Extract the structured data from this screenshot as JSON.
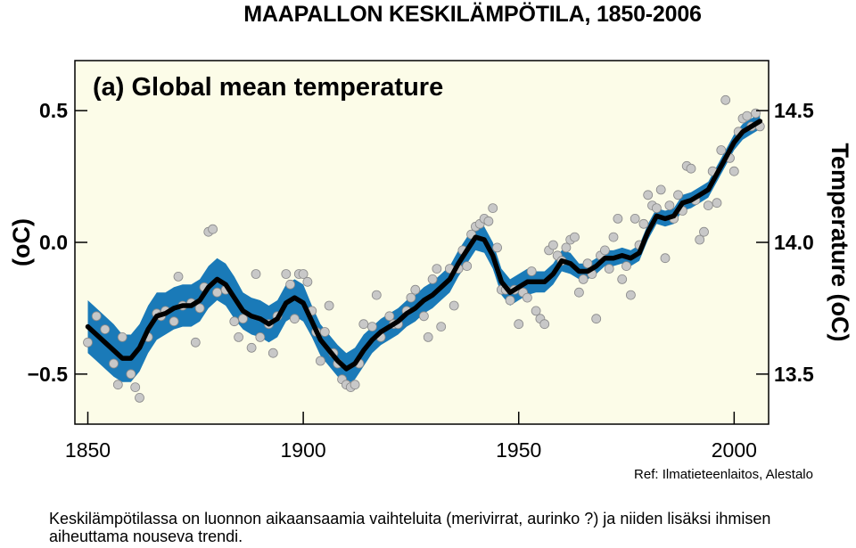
{
  "header": {
    "title": "MAAPALLON KESKILÄMPÖTILA, 1850-2006"
  },
  "chart_data": {
    "type": "line",
    "title": "(a) Global mean temperature",
    "ylabel_left": "(oC)",
    "ylabel_right": "Temperature (oC)",
    "xlim": [
      1847,
      2008
    ],
    "ylim": [
      -0.69,
      0.69
    ],
    "ylim_right": [
      13.31,
      14.69
    ],
    "x_ticks": [
      1850,
      1900,
      1950,
      2000
    ],
    "y_ticks_left": [
      {
        "value": -0.5,
        "label": "−0.5"
      },
      {
        "value": 0.0,
        "label": "0.0"
      },
      {
        "value": 0.5,
        "label": "0.5"
      }
    ],
    "y_ticks_right": [
      {
        "value": -0.5,
        "label": "13.5"
      },
      {
        "value": 0.0,
        "label": "14.0"
      },
      {
        "value": 0.5,
        "label": "14.5"
      }
    ],
    "colors": {
      "band": "#1a7ab8",
      "smooth": "#000000",
      "points": "#c8c8c8",
      "plot_bg": "#fcfce8"
    },
    "series": [
      {
        "name": "smoothed",
        "x": [
          1850,
          1852,
          1854,
          1856,
          1858,
          1860,
          1862,
          1864,
          1866,
          1868,
          1870,
          1872,
          1874,
          1876,
          1878,
          1880,
          1882,
          1884,
          1886,
          1888,
          1890,
          1892,
          1894,
          1896,
          1898,
          1900,
          1902,
          1904,
          1906,
          1908,
          1910,
          1912,
          1914,
          1916,
          1918,
          1920,
          1922,
          1924,
          1926,
          1928,
          1930,
          1932,
          1934,
          1936,
          1938,
          1940,
          1942,
          1944,
          1946,
          1948,
          1950,
          1952,
          1954,
          1956,
          1958,
          1960,
          1962,
          1964,
          1966,
          1968,
          1970,
          1972,
          1974,
          1976,
          1978,
          1980,
          1982,
          1984,
          1986,
          1988,
          1990,
          1992,
          1994,
          1996,
          1998,
          2000,
          2002,
          2004,
          2006
        ],
        "values": [
          -0.32,
          -0.35,
          -0.38,
          -0.41,
          -0.44,
          -0.44,
          -0.4,
          -0.33,
          -0.28,
          -0.27,
          -0.25,
          -0.24,
          -0.24,
          -0.22,
          -0.17,
          -0.14,
          -0.16,
          -0.21,
          -0.26,
          -0.28,
          -0.29,
          -0.31,
          -0.29,
          -0.23,
          -0.21,
          -0.23,
          -0.3,
          -0.37,
          -0.41,
          -0.45,
          -0.48,
          -0.46,
          -0.41,
          -0.37,
          -0.34,
          -0.32,
          -0.3,
          -0.27,
          -0.25,
          -0.22,
          -0.2,
          -0.17,
          -0.14,
          -0.08,
          -0.03,
          0.02,
          0.01,
          -0.05,
          -0.15,
          -0.19,
          -0.17,
          -0.15,
          -0.15,
          -0.15,
          -0.12,
          -0.07,
          -0.08,
          -0.11,
          -0.11,
          -0.09,
          -0.06,
          -0.06,
          -0.05,
          -0.06,
          -0.04,
          0.04,
          0.1,
          0.09,
          0.1,
          0.15,
          0.16,
          0.18,
          0.2,
          0.26,
          0.32,
          0.38,
          0.42,
          0.44,
          0.46
        ]
      },
      {
        "name": "uncertainty_band",
        "x": [
          1850,
          1852,
          1854,
          1856,
          1858,
          1860,
          1862,
          1864,
          1866,
          1868,
          1870,
          1872,
          1874,
          1876,
          1878,
          1880,
          1882,
          1884,
          1886,
          1888,
          1890,
          1892,
          1894,
          1896,
          1898,
          1900,
          1902,
          1904,
          1906,
          1908,
          1910,
          1912,
          1914,
          1916,
          1918,
          1920,
          1922,
          1924,
          1926,
          1928,
          1930,
          1932,
          1934,
          1936,
          1938,
          1940,
          1942,
          1944,
          1946,
          1948,
          1950,
          1952,
          1954,
          1956,
          1958,
          1960,
          1962,
          1964,
          1966,
          1968,
          1970,
          1972,
          1974,
          1976,
          1978,
          1980,
          1982,
          1984,
          1986,
          1988,
          1990,
          1992,
          1994,
          1996,
          1998,
          2000,
          2002,
          2004,
          2006
        ],
        "lower": [
          -0.42,
          -0.45,
          -0.48,
          -0.51,
          -0.53,
          -0.53,
          -0.49,
          -0.42,
          -0.37,
          -0.35,
          -0.33,
          -0.32,
          -0.32,
          -0.3,
          -0.25,
          -0.22,
          -0.24,
          -0.29,
          -0.33,
          -0.35,
          -0.36,
          -0.38,
          -0.36,
          -0.3,
          -0.28,
          -0.3,
          -0.36,
          -0.43,
          -0.47,
          -0.51,
          -0.54,
          -0.52,
          -0.47,
          -0.42,
          -0.39,
          -0.37,
          -0.35,
          -0.32,
          -0.3,
          -0.27,
          -0.25,
          -0.22,
          -0.19,
          -0.13,
          -0.08,
          -0.03,
          -0.04,
          -0.1,
          -0.2,
          -0.24,
          -0.22,
          -0.2,
          -0.19,
          -0.19,
          -0.16,
          -0.11,
          -0.12,
          -0.14,
          -0.14,
          -0.12,
          -0.09,
          -0.09,
          -0.08,
          -0.09,
          -0.07,
          0.01,
          0.07,
          0.06,
          0.07,
          0.12,
          0.13,
          0.15,
          0.17,
          0.23,
          0.29,
          0.35,
          0.39,
          0.41,
          0.43
        ],
        "upper": [
          -0.22,
          -0.25,
          -0.28,
          -0.31,
          -0.35,
          -0.35,
          -0.31,
          -0.24,
          -0.19,
          -0.19,
          -0.17,
          -0.16,
          -0.16,
          -0.14,
          -0.09,
          -0.06,
          -0.08,
          -0.13,
          -0.19,
          -0.21,
          -0.22,
          -0.24,
          -0.22,
          -0.16,
          -0.14,
          -0.16,
          -0.24,
          -0.31,
          -0.35,
          -0.39,
          -0.42,
          -0.4,
          -0.35,
          -0.32,
          -0.29,
          -0.27,
          -0.25,
          -0.22,
          -0.2,
          -0.17,
          -0.15,
          -0.12,
          -0.09,
          -0.03,
          0.02,
          0.07,
          0.06,
          0.0,
          -0.1,
          -0.14,
          -0.12,
          -0.1,
          -0.11,
          -0.11,
          -0.08,
          -0.03,
          -0.04,
          -0.08,
          -0.08,
          -0.06,
          -0.03,
          -0.03,
          -0.02,
          -0.03,
          -0.01,
          0.07,
          0.13,
          0.12,
          0.13,
          0.18,
          0.19,
          0.21,
          0.23,
          0.29,
          0.35,
          0.41,
          0.45,
          0.47,
          0.49
        ]
      },
      {
        "name": "annual",
        "x": [
          1850,
          1852,
          1854,
          1856,
          1857,
          1858,
          1860,
          1861,
          1862,
          1864,
          1866,
          1867,
          1868,
          1870,
          1871,
          1872,
          1874,
          1875,
          1876,
          1877,
          1878,
          1879,
          1880,
          1882,
          1884,
          1885,
          1886,
          1888,
          1889,
          1890,
          1892,
          1893,
          1894,
          1896,
          1897,
          1898,
          1899,
          1900,
          1901,
          1902,
          1903,
          1904,
          1905,
          1906,
          1907,
          1908,
          1909,
          1910,
          1911,
          1912,
          1913,
          1914,
          1916,
          1917,
          1918,
          1920,
          1921,
          1922,
          1924,
          1925,
          1926,
          1928,
          1929,
          1930,
          1931,
          1932,
          1934,
          1935,
          1936,
          1937,
          1938,
          1939,
          1940,
          1941,
          1942,
          1943,
          1944,
          1945,
          1946,
          1947,
          1948,
          1949,
          1950,
          1951,
          1952,
          1953,
          1954,
          1955,
          1956,
          1957,
          1958,
          1959,
          1960,
          1961,
          1962,
          1963,
          1964,
          1965,
          1966,
          1967,
          1968,
          1969,
          1970,
          1971,
          1972,
          1973,
          1974,
          1975,
          1976,
          1977,
          1978,
          1979,
          1980,
          1981,
          1982,
          1983,
          1984,
          1985,
          1986,
          1987,
          1988,
          1989,
          1990,
          1991,
          1992,
          1993,
          1994,
          1995,
          1996,
          1997,
          1998,
          1999,
          2000,
          2001,
          2002,
          2003,
          2004,
          2005,
          2006
        ],
        "values": [
          -0.38,
          -0.28,
          -0.33,
          -0.46,
          -0.54,
          -0.36,
          -0.5,
          -0.55,
          -0.59,
          -0.36,
          -0.27,
          -0.28,
          -0.26,
          -0.3,
          -0.13,
          -0.24,
          -0.23,
          -0.38,
          -0.25,
          -0.17,
          0.04,
          0.05,
          -0.19,
          -0.18,
          -0.3,
          -0.36,
          -0.29,
          -0.4,
          -0.12,
          -0.36,
          -0.31,
          -0.42,
          -0.28,
          -0.12,
          -0.16,
          -0.29,
          -0.12,
          -0.12,
          -0.15,
          -0.26,
          -0.34,
          -0.45,
          -0.34,
          -0.24,
          -0.42,
          -0.46,
          -0.52,
          -0.54,
          -0.55,
          -0.54,
          -0.46,
          -0.31,
          -0.32,
          -0.2,
          -0.36,
          -0.28,
          -0.31,
          -0.31,
          -0.26,
          -0.21,
          -0.18,
          -0.28,
          -0.36,
          -0.14,
          -0.1,
          -0.32,
          -0.1,
          -0.24,
          -0.1,
          -0.03,
          -0.09,
          0.03,
          0.06,
          0.07,
          0.09,
          0.08,
          0.13,
          -0.02,
          -0.18,
          -0.18,
          -0.22,
          -0.18,
          -0.31,
          -0.19,
          -0.21,
          -0.11,
          -0.26,
          -0.29,
          -0.31,
          -0.03,
          -0.01,
          -0.05,
          -0.07,
          -0.02,
          0.01,
          0.02,
          -0.19,
          -0.14,
          -0.08,
          -0.12,
          -0.29,
          -0.05,
          -0.03,
          -0.1,
          0.02,
          0.09,
          -0.14,
          -0.09,
          -0.2,
          0.09,
          -0.01,
          0.07,
          0.18,
          0.14,
          0.13,
          0.2,
          -0.06,
          0.14,
          0.09,
          0.18,
          0.12,
          0.29,
          0.28,
          0.16,
          0.01,
          0.04,
          0.14,
          0.27,
          0.15,
          0.35,
          0.54,
          0.32,
          0.27,
          0.42,
          0.47,
          0.48,
          0.44,
          0.49,
          0.44
        ]
      }
    ]
  },
  "ref": "Ref: Ilmatieteenlaitos, Alestalo",
  "caption": "Keskilämpötilassa on luonnon aikaansaamia vaihteluita (merivirrat, aurinko ?) ja niiden lisäksi ihmisen aiheuttama nouseva trendi."
}
